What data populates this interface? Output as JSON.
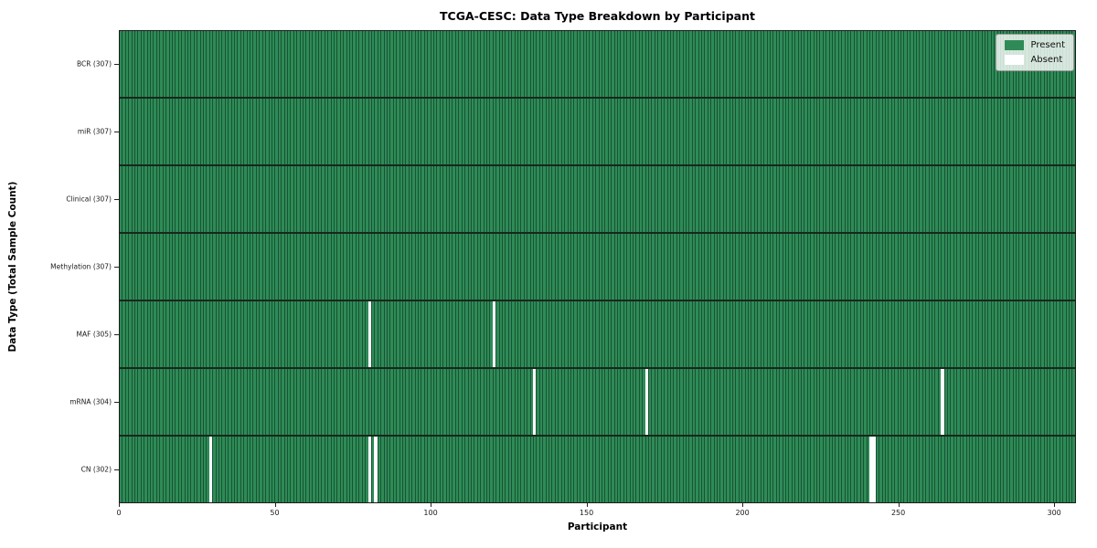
{
  "chart_data": {
    "type": "heatmap",
    "title": "TCGA-CESC: Data Type Breakdown by Participant",
    "xlabel": "Participant",
    "ylabel": "Data Type (Total Sample Count)",
    "x_ticks": [
      0,
      50,
      100,
      150,
      200,
      250,
      300
    ],
    "xlim": [
      0,
      307
    ],
    "n_participants": 307,
    "grid": false,
    "legend_position": "upper right",
    "legend": {
      "entries": [
        {
          "label": "Present",
          "color": "#2e8b57"
        },
        {
          "label": "Absent",
          "color": "#ffffff"
        }
      ]
    },
    "rows": [
      {
        "label": "BCR (307)",
        "data_type": "BCR",
        "count": 307,
        "absent_participants": []
      },
      {
        "label": "miR (307)",
        "data_type": "miR",
        "count": 307,
        "absent_participants": []
      },
      {
        "label": "Clinical (307)",
        "data_type": "Clinical",
        "count": 307,
        "absent_participants": []
      },
      {
        "label": "Methylation (307)",
        "data_type": "Methylation",
        "count": 307,
        "absent_participants": []
      },
      {
        "label": "MAF (305)",
        "data_type": "MAF",
        "count": 305,
        "absent_participants": [
          80,
          120
        ]
      },
      {
        "label": "mRNA (304)",
        "data_type": "mRNA",
        "count": 304,
        "absent_participants": [
          133,
          169,
          264
        ]
      },
      {
        "label": "CN (302)",
        "data_type": "CN",
        "count": 302,
        "absent_participants": [
          29,
          80,
          82,
          241,
          242
        ]
      }
    ],
    "colors": {
      "present": "#2e8b57",
      "absent": "#ffffff",
      "cell_edge": "#13361f",
      "row_divider": "#18271c",
      "spine": "#1b1b1b"
    }
  }
}
